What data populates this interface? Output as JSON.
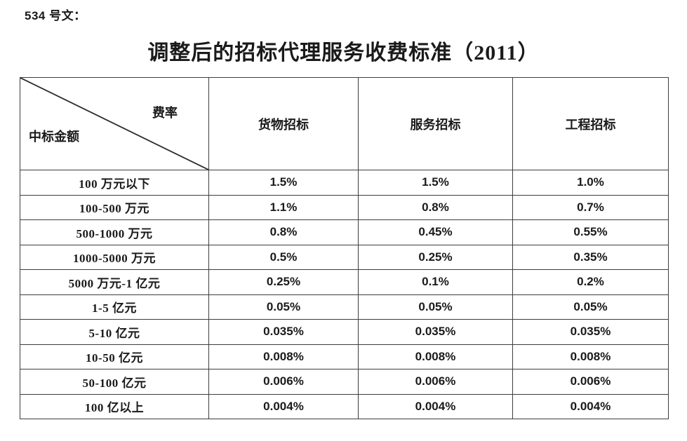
{
  "page": {
    "doc_label": "534 号文：",
    "title": "调整后的招标代理服务收费标准（2011）"
  },
  "table": {
    "corner": {
      "top_right": "费率",
      "bottom_left": "中标金额"
    },
    "columns": [
      "货物招标",
      "服务招标",
      "工程招标"
    ],
    "rows": [
      {
        "label": "100 万元以下",
        "values": [
          "1.5%",
          "1.5%",
          "1.0%"
        ]
      },
      {
        "label": "100-500 万元",
        "values": [
          "1.1%",
          "0.8%",
          "0.7%"
        ]
      },
      {
        "label": "500-1000 万元",
        "values": [
          "0.8%",
          "0.45%",
          "0.55%"
        ]
      },
      {
        "label": "1000-5000 万元",
        "values": [
          "0.5%",
          "0.25%",
          "0.35%"
        ]
      },
      {
        "label": "5000 万元-1 亿元",
        "values": [
          "0.25%",
          "0.1%",
          "0.2%"
        ]
      },
      {
        "label": "1-5 亿元",
        "values": [
          "0.05%",
          "0.05%",
          "0.05%"
        ]
      },
      {
        "label": "5-10 亿元",
        "values": [
          "0.035%",
          "0.035%",
          "0.035%"
        ]
      },
      {
        "label": "10-50 亿元",
        "values": [
          "0.008%",
          "0.008%",
          "0.008%"
        ]
      },
      {
        "label": "50-100 亿元",
        "values": [
          "0.006%",
          "0.006%",
          "0.006%"
        ]
      },
      {
        "label": "100 亿以上",
        "values": [
          "0.004%",
          "0.004%",
          "0.004%"
        ]
      }
    ]
  },
  "colors": {
    "text": "#1a1a1a",
    "border": "#3d3d3d",
    "background": "#ffffff"
  }
}
